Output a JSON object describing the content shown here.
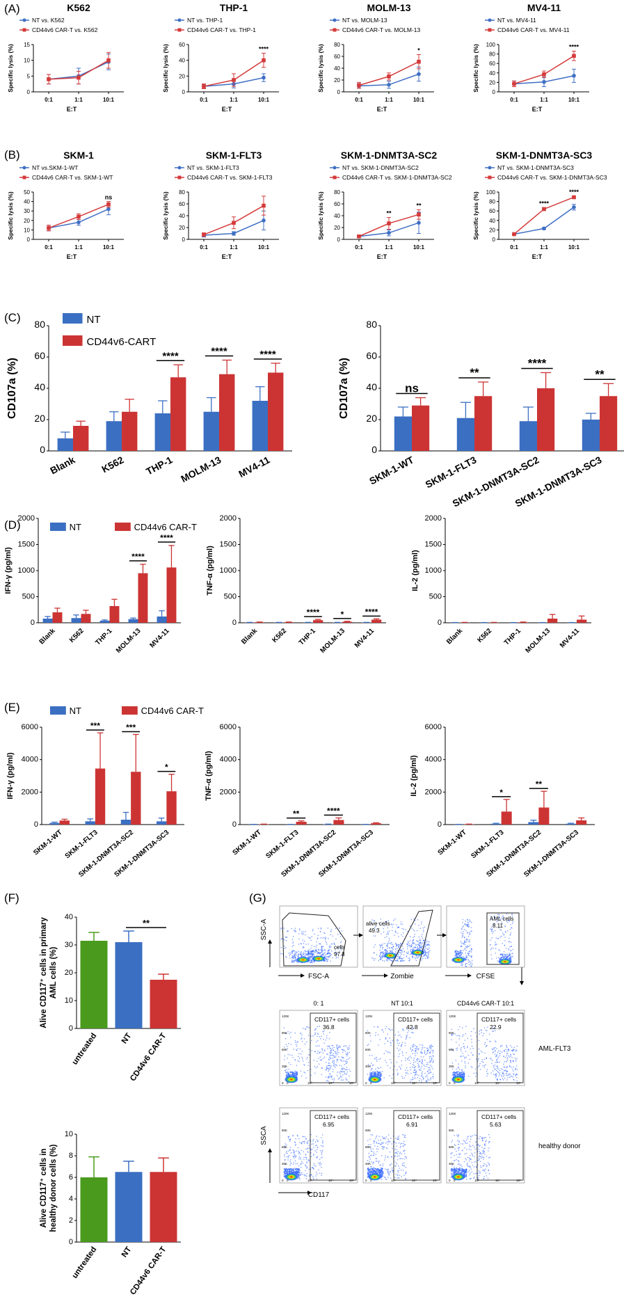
{
  "colors": {
    "nt": "#3f6fc4",
    "car": "#d43a3a",
    "untreated": "#4a9a1e",
    "bar_nt": "#3b6fc2",
    "bar_car": "#cc3434"
  },
  "panels": {
    "A": "(A)",
    "B": "(B)",
    "C": "(C)",
    "D": "(D)",
    "E": "(E)",
    "F": "(F)",
    "G": "(G)"
  },
  "chart_data": [
    {
      "id": "A1",
      "type": "line",
      "title": "K562",
      "ylabel": "Specific lysis (%)",
      "xlabel": "E:T",
      "x": [
        "0:1",
        "1:1",
        "10:1"
      ],
      "ylim": [
        0,
        15
      ],
      "yticks": [
        0,
        5,
        10,
        15
      ],
      "series": [
        {
          "name": "NT vs. K562",
          "values": [
            4,
            5,
            9.5
          ],
          "err": [
            1.5,
            2.5,
            2.5
          ]
        },
        {
          "name": "CD44v6 CAR-T vs. K562",
          "values": [
            4,
            4.5,
            10
          ],
          "err": [
            1.5,
            2,
            2.5
          ]
        }
      ],
      "sig": [
        "",
        "",
        ""
      ]
    },
    {
      "id": "A2",
      "type": "line",
      "title": "THP-1",
      "ylabel": "Specific lysis (%)",
      "xlabel": "E:T",
      "x": [
        "0:1",
        "1:1",
        "10:1"
      ],
      "ylim": [
        0,
        60
      ],
      "yticks": [
        0,
        20,
        40,
        60
      ],
      "series": [
        {
          "name": "NT vs. THP-1",
          "values": [
            7,
            10,
            18
          ],
          "err": [
            3,
            5,
            5
          ]
        },
        {
          "name": "CD44v6 CAR-T vs. THP-1",
          "values": [
            7,
            15,
            40
          ],
          "err": [
            3,
            8,
            9
          ]
        }
      ],
      "sig": [
        "",
        "",
        "****"
      ]
    },
    {
      "id": "A3",
      "type": "line",
      "title": "MOLM-13",
      "ylabel": "Specific lysis (%)",
      "xlabel": "E:T",
      "x": [
        "0:1",
        "1:1",
        "10:1"
      ],
      "ylim": [
        0,
        80
      ],
      "yticks": [
        0,
        20,
        40,
        60,
        80
      ],
      "series": [
        {
          "name": "NT vs. MOLM-13",
          "values": [
            10,
            12,
            30
          ],
          "err": [
            4,
            6,
            12
          ]
        },
        {
          "name": "CD44v6 CAR-T vs. MOLM-13",
          "values": [
            11,
            26,
            51
          ],
          "err": [
            5,
            6,
            12
          ]
        }
      ],
      "sig": [
        "",
        "",
        "*"
      ]
    },
    {
      "id": "A4",
      "type": "line",
      "title": "MV4-11",
      "ylabel": "Specific lysis (%)",
      "xlabel": "E:T",
      "x": [
        "0:1",
        "1:1",
        "10:1"
      ],
      "ylim": [
        0,
        100
      ],
      "yticks": [
        0,
        20,
        40,
        60,
        80,
        100
      ],
      "series": [
        {
          "name": "NT vs. MV4-11",
          "values": [
            17,
            21,
            34
          ],
          "err": [
            6,
            10,
            14
          ]
        },
        {
          "name": "CD44v6 CAR-T vs. MV4-11",
          "values": [
            17,
            37,
            76
          ],
          "err": [
            6,
            7,
            10
          ]
        }
      ],
      "sig": [
        "",
        "",
        "****"
      ]
    },
    {
      "id": "B1",
      "type": "line",
      "title": "SKM-1",
      "ylabel": "Specific lysis (%)",
      "xlabel": "E:T",
      "x": [
        "0:1",
        "1:1",
        "10:1"
      ],
      "ylim": [
        0,
        50
      ],
      "yticks": [
        0,
        10,
        20,
        30,
        40,
        50
      ],
      "series": [
        {
          "name": "NT vs.SKM-1-WT",
          "values": [
            12,
            18,
            32
          ],
          "err": [
            3,
            3,
            6
          ]
        },
        {
          "name": "CD44v6 CAR-T vs. SKM-1-WT",
          "values": [
            12,
            24,
            37
          ],
          "err": [
            3,
            3,
            3
          ]
        }
      ],
      "sig": [
        "",
        "",
        "ns"
      ]
    },
    {
      "id": "B2",
      "type": "line",
      "title": "SKM-1-FLT3",
      "ylabel": "Specific lysis (%)",
      "xlabel": "E:T",
      "x": [
        "0:1",
        "1:1",
        "10:1"
      ],
      "ylim": [
        0,
        80
      ],
      "yticks": [
        0,
        20,
        40,
        60,
        80
      ],
      "series": [
        {
          "name": "NT vs. SKM-1-FLT3",
          "values": [
            7,
            10,
            32
          ],
          "err": [
            3,
            3,
            16
          ]
        },
        {
          "name": "CD44v6 CAR-T vs. SKM-1-FLT3",
          "values": [
            8,
            28,
            57
          ],
          "err": [
            3,
            10,
            16
          ]
        }
      ],
      "sig": [
        "",
        "",
        ""
      ]
    },
    {
      "id": "B3",
      "type": "line",
      "title": "SKM-1-DNMT3A-SC2",
      "ylabel": "Specific lysis (%)",
      "xlabel": "E:T",
      "x": [
        "0:1",
        "1:1",
        "10:1"
      ],
      "ylim": [
        0,
        80
      ],
      "yticks": [
        0,
        20,
        40,
        60,
        80
      ],
      "series": [
        {
          "name": "NT vs. SKM-1-DNMT3A-SC2",
          "values": [
            5,
            11,
            28
          ],
          "err": [
            1,
            5,
            18
          ]
        },
        {
          "name": "CD44v6 CAR-T vs. SKM-1-DNMT3A-SC2",
          "values": [
            5,
            27,
            42
          ],
          "err": [
            1,
            10,
            8
          ]
        }
      ],
      "sig": [
        "",
        "**",
        "**"
      ]
    },
    {
      "id": "B4",
      "type": "line",
      "title": "SKM-1-DNMT3A-SC3",
      "ylabel": "Specific lysis (%)",
      "xlabel": "E:T",
      "x": [
        "0:1",
        "1:1",
        "10:1"
      ],
      "ylim": [
        0,
        100
      ],
      "yticks": [
        0,
        20,
        40,
        60,
        80,
        100
      ],
      "series": [
        {
          "name": "NT vs. SKM-1-DNMT3A-SC3",
          "values": [
            11,
            23,
            68
          ],
          "err": [
            0.5,
            2,
            6
          ]
        },
        {
          "name": "CD44v6 CAR-T vs. SKM-1-DNMT3A-SC3",
          "values": [
            11,
            64,
            89
          ],
          "err": [
            0.5,
            3,
            2
          ]
        }
      ],
      "sig": [
        "",
        "****",
        "****"
      ]
    },
    {
      "id": "C1",
      "type": "bar",
      "ylabel": "CD107a (%)",
      "categories": [
        "Blank",
        "K562",
        "THP-1",
        "MOLM-13",
        "MV4-11"
      ],
      "ylim": [
        0,
        80
      ],
      "yticks": [
        0,
        20,
        40,
        60,
        80
      ],
      "legend": [
        "NT",
        "CD44v6-CART"
      ],
      "series": [
        {
          "name": "NT",
          "values": [
            8,
            19,
            24,
            25,
            32
          ],
          "err": [
            4,
            6,
            8,
            9,
            9
          ]
        },
        {
          "name": "CD44v6-CART",
          "values": [
            16,
            25,
            47,
            49,
            50
          ],
          "err": [
            3,
            8,
            8,
            9,
            6
          ]
        }
      ],
      "sig": [
        "",
        "",
        "****",
        "****",
        "****"
      ]
    },
    {
      "id": "C2",
      "type": "bar",
      "ylabel": "CD107a (%)",
      "categories": [
        "SKM-1-WT",
        "SKM-1-FLT3",
        "SKM-1-DNMT3A-SC2",
        "SKM-1-DNMT3A-SC3"
      ],
      "ylim": [
        0,
        80
      ],
      "yticks": [
        0,
        20,
        40,
        60,
        80
      ],
      "series": [
        {
          "name": "NT",
          "values": [
            22,
            21,
            19,
            20
          ],
          "err": [
            6,
            10,
            9,
            4
          ]
        },
        {
          "name": "CD44v6-CART",
          "values": [
            29,
            35,
            40,
            35
          ],
          "err": [
            5,
            9,
            10,
            8
          ]
        }
      ],
      "sig": [
        "ns",
        "**",
        "****",
        "**"
      ]
    },
    {
      "id": "D1",
      "type": "bar",
      "ylabel": "IFN-γ (pg/ml)",
      "categories": [
        "Blank",
        "K562",
        "THP-1",
        "MOLM-13",
        "MV4-11"
      ],
      "ylim": [
        0,
        2000
      ],
      "yticks": [
        0,
        500,
        1000,
        1500,
        2000
      ],
      "legend": [
        "NT",
        "CD44v6 CAR-T"
      ],
      "series": [
        {
          "name": "NT",
          "values": [
            80,
            90,
            40,
            70,
            120
          ],
          "err": [
            40,
            60,
            15,
            20,
            110
          ]
        },
        {
          "name": "CD44v6 CAR-T",
          "values": [
            200,
            170,
            320,
            950,
            1060
          ],
          "err": [
            80,
            70,
            130,
            170,
            420
          ]
        }
      ],
      "sig": [
        "",
        "",
        "",
        "****",
        "****"
      ]
    },
    {
      "id": "D2",
      "type": "bar",
      "ylabel": "TNF-α (pg/ml)",
      "categories": [
        "Blank",
        "K562",
        "THP-1",
        "MOLM-13",
        "MV4-11"
      ],
      "ylim": [
        0,
        2000
      ],
      "yticks": [
        0,
        500,
        1000,
        1500,
        2000
      ],
      "series": [
        {
          "name": "NT",
          "values": [
            5,
            5,
            5,
            5,
            5
          ],
          "err": [
            3,
            3,
            3,
            3,
            3
          ]
        },
        {
          "name": "CD44v6 CAR-T",
          "values": [
            10,
            10,
            50,
            20,
            60
          ],
          "err": [
            5,
            5,
            15,
            8,
            15
          ]
        }
      ],
      "sig": [
        "",
        "",
        "****",
        "*",
        "****"
      ]
    },
    {
      "id": "D3",
      "type": "bar",
      "ylabel": "IL-2 (pg/ml)",
      "categories": [
        "Blank",
        "K562",
        "THP-1",
        "MOLM-13",
        "MV4-11"
      ],
      "ylim": [
        0,
        2000
      ],
      "yticks": [
        0,
        500,
        1000,
        1500,
        2000
      ],
      "series": [
        {
          "name": "NT",
          "values": [
            3,
            3,
            3,
            3,
            3
          ],
          "err": [
            2,
            2,
            2,
            2,
            2
          ]
        },
        {
          "name": "CD44v6 CAR-T",
          "values": [
            5,
            5,
            10,
            80,
            60
          ],
          "err": [
            3,
            3,
            5,
            80,
            70
          ]
        }
      ],
      "sig": [
        "",
        "",
        "",
        "",
        ""
      ]
    },
    {
      "id": "E1",
      "type": "bar",
      "ylabel": "IFN-γ (pg/ml)",
      "categories": [
        "SKM-1-WT",
        "SKM-1-FLT3",
        "SKM-1-DNMT3A-SC2",
        "SKM-1-DNMT3A-SC3"
      ],
      "ylim": [
        0,
        6000
      ],
      "yticks": [
        0,
        2000,
        4000,
        6000
      ],
      "legend": [
        "NT",
        "CD44v6 CAR-T"
      ],
      "series": [
        {
          "name": "NT",
          "values": [
            100,
            200,
            300,
            200
          ],
          "err": [
            50,
            150,
            450,
            200
          ]
        },
        {
          "name": "CD44v6 CAR-T",
          "values": [
            250,
            3450,
            3250,
            2050
          ],
          "err": [
            80,
            2200,
            2300,
            1050
          ]
        }
      ],
      "sig": [
        "",
        "***",
        "***",
        "*"
      ]
    },
    {
      "id": "E2",
      "type": "bar",
      "ylabel": "TNF-α (pg/ml)",
      "categories": [
        "SKM-1-WT",
        "SKM-1-FLT3",
        "SKM-1-DNMT3A-SC2",
        "SKM-1-DNMT3A-SC3"
      ],
      "ylim": [
        0,
        6000
      ],
      "yticks": [
        0,
        2000,
        4000,
        6000
      ],
      "series": [
        {
          "name": "NT",
          "values": [
            10,
            10,
            20,
            10
          ],
          "err": [
            5,
            5,
            10,
            5
          ]
        },
        {
          "name": "CD44v6 CAR-T",
          "values": [
            20,
            170,
            280,
            80
          ],
          "err": [
            10,
            60,
            130,
            30
          ]
        }
      ],
      "sig": [
        "",
        "**",
        "****",
        ""
      ]
    },
    {
      "id": "E3",
      "type": "bar",
      "ylabel": "IL-2 (pg/ml)",
      "categories": [
        "SKM-1-WT",
        "SKM-1-FLT3",
        "SKM-1-DNMT3A-SC2",
        "SKM-1-DNMT3A-SC3"
      ],
      "ylim": [
        0,
        6000
      ],
      "yticks": [
        0,
        2000,
        4000,
        6000
      ],
      "series": [
        {
          "name": "NT",
          "values": [
            10,
            50,
            150,
            50
          ],
          "err": [
            5,
            30,
            120,
            30
          ]
        },
        {
          "name": "CD44v6 CAR-T",
          "values": [
            20,
            800,
            1050,
            260
          ],
          "err": [
            10,
            750,
            1000,
            150
          ]
        }
      ],
      "sig": [
        "",
        "*",
        "**",
        ""
      ]
    },
    {
      "id": "F1",
      "type": "bar",
      "ylabel": "Alive CD117⁺ cells in primary AML cells (%)",
      "ylabel_lines": [
        "Alive CD117⁺ cells in primary",
        "AML cells (%)"
      ],
      "categories": [
        "untreated",
        "NT",
        "CD44v6 CAR-T"
      ],
      "ylim": [
        0,
        40
      ],
      "yticks": [
        0,
        10,
        20,
        30,
        40
      ],
      "values": [
        31.5,
        31,
        17.5
      ],
      "err": [
        3,
        4,
        2
      ],
      "sig_bracket": {
        "from": 1,
        "to": 2,
        "label": "**"
      }
    },
    {
      "id": "F2",
      "type": "bar",
      "ylabel": "Alive CD117⁺ cells in healthy donor cells (%)",
      "ylabel_lines": [
        "Alive CD117⁺ cells in",
        "healthy donor cells (%)"
      ],
      "categories": [
        "untreated",
        "NT",
        "CD44v6 CAR-T"
      ],
      "ylim": [
        0,
        10
      ],
      "yticks": [
        0,
        2,
        4,
        6,
        8,
        10
      ],
      "values": [
        6,
        6.5,
        6.5
      ],
      "err": [
        1.9,
        1,
        1.3
      ]
    }
  ],
  "flow": {
    "gating": [
      {
        "xlabel": "FSC-A",
        "ylabel": "SSC-A",
        "gate_label": "cells",
        "gate_value": "97.8"
      },
      {
        "xlabel": "Zombie",
        "ylabel": "",
        "gate_label": "alive cells",
        "gate_value": "49.3"
      },
      {
        "xlabel": "CFSE",
        "ylabel": "",
        "gate_label": "AML cells",
        "gate_value": "8.11"
      }
    ],
    "column_titles": [
      "0: 1",
      "NT 10:1",
      "CD44v6 CAR-T 10:1"
    ],
    "rows": [
      {
        "label": "AML-FLT3",
        "gate_label": "CD117+ cells",
        "values": [
          "36.8",
          "42.8",
          "22.9"
        ]
      },
      {
        "label": "healthy donor",
        "gate_label": "CD117+ cells",
        "values": [
          "6.95",
          "6.91",
          "5.63"
        ]
      }
    ],
    "xlabel": "CD117",
    "ylabel": "SSCA",
    "y_ticks": [
      "120K",
      "90K",
      "60K",
      "30K",
      "0"
    ],
    "x_ticks": [
      "0",
      "10³",
      "10⁴",
      "10⁵"
    ]
  }
}
